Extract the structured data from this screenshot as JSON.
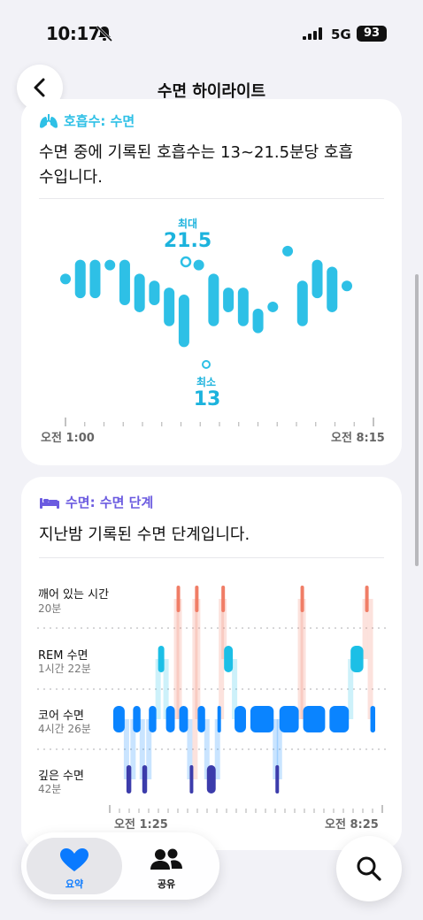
{
  "status_bar": {
    "time": "10:17",
    "network": "5G",
    "battery": "93"
  },
  "nav": {
    "title": "수면 하이라이트",
    "back_icon": "chevron-left-icon"
  },
  "respiratory_card": {
    "tag": "호흡수: 수면",
    "tag_color": "#2ec0e6",
    "description": "수면 중에 기록된 호흡수는 13~21.5분당 호흡수입니다.",
    "max_label": "최대",
    "max_value": "21.5",
    "min_label": "최소",
    "min_value": "13",
    "x_start": "오전 1:00",
    "x_end": "오전 8:15"
  },
  "sleep_card": {
    "tag": "수면: 수면 단계",
    "tag_color": "#6b5be0",
    "description": "지난밤 기록된 수면 단계입니다.",
    "stages": [
      {
        "name": "깨어 있는 시간",
        "duration": "20분",
        "color": "#f07d66"
      },
      {
        "name": "REM 수면",
        "duration": "1시간 22분",
        "color": "#1cbfe6"
      },
      {
        "name": "코어 수면",
        "duration": "4시간 26분",
        "color": "#0a84ff"
      },
      {
        "name": "깊은 수면",
        "duration": "42분",
        "color": "#3c3cab"
      }
    ],
    "x_start": "오전 1:25",
    "x_end": "오전 8:25"
  },
  "tabbar": {
    "summary_label": "요약",
    "share_label": "공유"
  },
  "chart_data": [
    {
      "type": "range",
      "series": [
        {
          "values": [
            [
              19,
              19
            ],
            [
              18,
              20
            ],
            [
              18,
              20
            ],
            [
              20,
              20
            ],
            [
              17.5,
              20
            ],
            [
              17,
              19
            ],
            [
              17.5,
              18.5
            ],
            [
              16,
              18
            ],
            [
              14.5,
              17.5
            ],
            [
              20,
              20
            ],
            [
              16,
              19
            ],
            [
              17,
              18
            ],
            [
              16,
              18
            ],
            [
              15.5,
              16.5
            ],
            [
              17,
              17
            ],
            [
              21,
              21
            ],
            [
              16,
              18.5
            ],
            [
              18,
              20
            ],
            [
              17,
              19.5
            ],
            [
              18.5,
              18.5
            ]
          ]
        }
      ],
      "max": 21.5,
      "min": 13
    },
    {
      "type": "hypnogram",
      "stages": [
        "깨어 있는 시간",
        "REM 수면",
        "코어 수면",
        "깊은 수면"
      ],
      "segments": [
        {
          "stage": 2,
          "start": 0.0,
          "end": 0.05
        },
        {
          "stage": 3,
          "start": 0.05,
          "end": 0.075
        },
        {
          "stage": 2,
          "start": 0.075,
          "end": 0.11
        },
        {
          "stage": 3,
          "start": 0.11,
          "end": 0.135
        },
        {
          "stage": 2,
          "start": 0.135,
          "end": 0.17
        },
        {
          "stage": 1,
          "start": 0.17,
          "end": 0.2
        },
        {
          "stage": 2,
          "start": 0.2,
          "end": 0.24
        },
        {
          "stage": 0,
          "start": 0.24,
          "end": 0.25
        },
        {
          "stage": 2,
          "start": 0.25,
          "end": 0.29
        },
        {
          "stage": 3,
          "start": 0.29,
          "end": 0.31
        },
        {
          "stage": 0,
          "start": 0.31,
          "end": 0.32
        },
        {
          "stage": 2,
          "start": 0.32,
          "end": 0.355
        },
        {
          "stage": 3,
          "start": 0.355,
          "end": 0.395
        },
        {
          "stage": 2,
          "start": 0.395,
          "end": 0.41
        },
        {
          "stage": 0,
          "start": 0.41,
          "end": 0.42
        },
        {
          "stage": 1,
          "start": 0.42,
          "end": 0.46
        },
        {
          "stage": 2,
          "start": 0.46,
          "end": 0.51
        },
        {
          "stage": 2,
          "start": 0.52,
          "end": 0.615
        },
        {
          "stage": 3,
          "start": 0.615,
          "end": 0.63
        },
        {
          "stage": 2,
          "start": 0.63,
          "end": 0.71
        },
        {
          "stage": 0,
          "start": 0.71,
          "end": 0.72
        },
        {
          "stage": 2,
          "start": 0.72,
          "end": 0.81
        },
        {
          "stage": 2,
          "start": 0.82,
          "end": 0.9
        },
        {
          "stage": 1,
          "start": 0.9,
          "end": 0.955
        },
        {
          "stage": 0,
          "start": 0.955,
          "end": 0.975
        },
        {
          "stage": 2,
          "start": 0.975,
          "end": 1.0
        }
      ]
    }
  ]
}
